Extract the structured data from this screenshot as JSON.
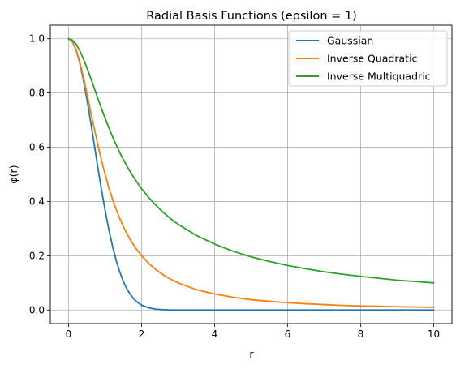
{
  "chart_data": {
    "type": "line",
    "title": "Radial Basis Functions (epsilon = 1)",
    "xlabel": "r",
    "ylabel": "φ(r)",
    "xlim": [
      -0.5,
      10.5
    ],
    "ylim": [
      -0.05,
      1.05
    ],
    "x_ticks": [
      0,
      2,
      4,
      6,
      8,
      10
    ],
    "y_ticks": [
      0.0,
      0.2,
      0.4,
      0.6,
      0.8,
      1.0
    ],
    "x_tick_labels": [
      "0",
      "2",
      "4",
      "6",
      "8",
      "10"
    ],
    "y_tick_labels": [
      "0.0",
      "0.2",
      "0.4",
      "0.6",
      "0.8",
      "1.0"
    ],
    "grid": true,
    "legend_position": "top-right",
    "x": [
      0,
      0.1,
      0.2,
      0.3,
      0.4,
      0.5,
      0.6,
      0.7,
      0.8,
      0.9,
      1.0,
      1.1,
      1.2,
      1.3,
      1.4,
      1.5,
      1.6,
      1.7,
      1.8,
      1.9,
      2.0,
      2.2,
      2.4,
      2.6,
      2.8,
      3.0,
      3.5,
      4.0,
      4.5,
      5.0,
      5.5,
      6.0,
      6.5,
      7.0,
      7.5,
      8.0,
      8.5,
      9.0,
      9.5,
      10.0
    ],
    "series": [
      {
        "name": "Gaussian",
        "color": "#1f77b4",
        "values": [
          1.0,
          0.99,
          0.961,
          0.914,
          0.852,
          0.779,
          0.698,
          0.613,
          0.527,
          0.445,
          0.368,
          0.298,
          0.237,
          0.185,
          0.141,
          0.105,
          0.077,
          0.056,
          0.039,
          0.027,
          0.018,
          0.008,
          0.003,
          0.001,
          0.0,
          0.0,
          0.0,
          0.0,
          0.0,
          0.0,
          0.0,
          0.0,
          0.0,
          0.0,
          0.0,
          0.0,
          0.0,
          0.0,
          0.0,
          0.0
        ]
      },
      {
        "name": "Inverse Quadratic",
        "color": "#ff7f0e",
        "values": [
          1.0,
          0.99,
          0.962,
          0.917,
          0.862,
          0.8,
          0.735,
          0.671,
          0.61,
          0.552,
          0.5,
          0.452,
          0.41,
          0.372,
          0.338,
          0.308,
          0.281,
          0.257,
          0.236,
          0.217,
          0.2,
          0.171,
          0.148,
          0.129,
          0.113,
          0.1,
          0.075,
          0.059,
          0.047,
          0.038,
          0.032,
          0.027,
          0.023,
          0.02,
          0.017,
          0.015,
          0.014,
          0.012,
          0.011,
          0.01
        ]
      },
      {
        "name": "Inverse Multiquadric",
        "color": "#2ca02c",
        "values": [
          1.0,
          0.995,
          0.981,
          0.958,
          0.928,
          0.894,
          0.857,
          0.819,
          0.781,
          0.743,
          0.707,
          0.673,
          0.64,
          0.61,
          0.581,
          0.555,
          0.53,
          0.507,
          0.486,
          0.466,
          0.447,
          0.414,
          0.385,
          0.359,
          0.336,
          0.316,
          0.275,
          0.243,
          0.217,
          0.196,
          0.179,
          0.164,
          0.152,
          0.141,
          0.132,
          0.124,
          0.117,
          0.11,
          0.105,
          0.1
        ]
      }
    ]
  }
}
